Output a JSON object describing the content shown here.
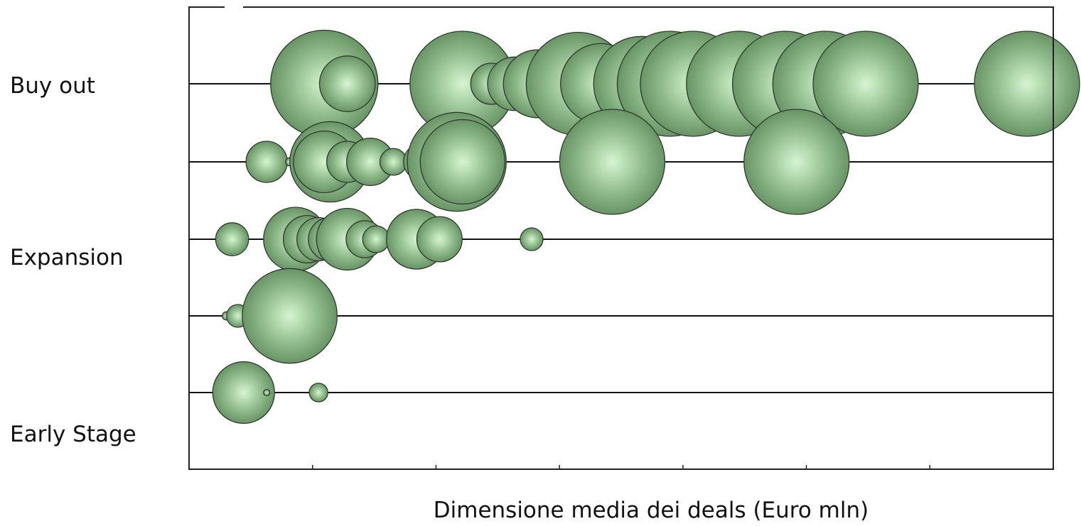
{
  "chart_data": {
    "type": "scatter",
    "xlabel": "Dimensione media dei deals (Euro mln)",
    "ylabel": "",
    "category_labels": [
      "Buy out",
      "Expansion",
      "Early Stage"
    ],
    "x_tick_count": 7,
    "grid": false,
    "bubble_color": "#8fba8c",
    "bubble_highlight": "#d6f5cf",
    "bubble_shadow": "#5f8a5c",
    "series": [
      {
        "row": 1,
        "points": [
          {
            "x": 0.9,
            "size": 0.52
          },
          {
            "x": 1.1,
            "size": 0.27
          },
          {
            "x": 2.0,
            "size": 0.28
          },
          {
            "x": 2.1,
            "size": 0.45
          },
          {
            "x": 2.1,
            "size": 0.51
          },
          {
            "x": 2.35,
            "size": 0.2
          },
          {
            "x": 2.55,
            "size": 0.26
          },
          {
            "x": 2.75,
            "size": 0.33
          },
          {
            "x": 3.1,
            "size": 0.5
          },
          {
            "x": 3.3,
            "size": 0.39
          },
          {
            "x": 3.65,
            "size": 0.46
          },
          {
            "x": 3.9,
            "size": 0.51
          },
          {
            "x": 4.1,
            "size": 0.51
          },
          {
            "x": 4.5,
            "size": 0.51
          },
          {
            "x": 4.9,
            "size": 0.51
          },
          {
            "x": 5.25,
            "size": 0.51
          },
          {
            "x": 5.6,
            "size": 0.51
          },
          {
            "x": 7.0,
            "size": 0.51
          }
        ]
      },
      {
        "row": 2,
        "points": [
          {
            "x": 0.4,
            "size": 0.2
          },
          {
            "x": 0.6,
            "size": 0.04
          },
          {
            "x": 0.95,
            "size": 0.36
          },
          {
            "x": 0.95,
            "size": 0.39
          },
          {
            "x": 0.9,
            "size": 0.3
          },
          {
            "x": 1.1,
            "size": 0.2
          },
          {
            "x": 1.3,
            "size": 0.23
          },
          {
            "x": 1.5,
            "size": 0.13
          },
          {
            "x": 1.75,
            "size": 0.18
          },
          {
            "x": 2.05,
            "size": 0.48
          },
          {
            "x": 2.1,
            "size": 0.41
          },
          {
            "x": 3.4,
            "size": 0.51
          },
          {
            "x": 5.0,
            "size": 0.51
          }
        ]
      },
      {
        "row": 3,
        "points": [
          {
            "x": 0.1,
            "size": 0.16
          },
          {
            "x": 0.65,
            "size": 0.31
          },
          {
            "x": 0.75,
            "size": 0.23
          },
          {
            "x": 0.85,
            "size": 0.21
          },
          {
            "x": 0.95,
            "size": 0.21
          },
          {
            "x": 1.1,
            "size": 0.3
          },
          {
            "x": 1.25,
            "size": 0.18
          },
          {
            "x": 1.35,
            "size": 0.13
          },
          {
            "x": 1.7,
            "size": 0.29
          },
          {
            "x": 1.9,
            "size": 0.22
          },
          {
            "x": 2.7,
            "size": 0.11
          }
        ]
      },
      {
        "row": 4,
        "points": [
          {
            "x": 0.05,
            "size": 0.04
          },
          {
            "x": 0.15,
            "size": 0.11
          },
          {
            "x": 0.6,
            "size": 0.46
          }
        ]
      },
      {
        "row": 5,
        "points": [
          {
            "x": 0.2,
            "size": 0.3
          },
          {
            "x": 0.4,
            "size": 0.03
          },
          {
            "x": 0.85,
            "size": 0.09
          }
        ]
      }
    ]
  }
}
